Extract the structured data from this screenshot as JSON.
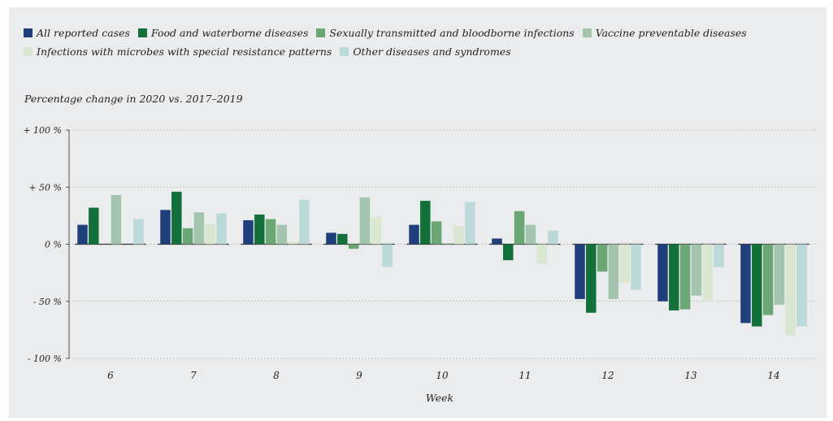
{
  "chart_data": {
    "type": "bar",
    "title": "",
    "ylabel": "Percentage change in 2020 vs. 2017–2019",
    "xlabel": "Week",
    "categories": [
      "6",
      "7",
      "8",
      "9",
      "10",
      "11",
      "12",
      "13",
      "14"
    ],
    "ylim": [
      -100,
      100
    ],
    "yticks": [
      {
        "value": 100,
        "label": "+ 100 %"
      },
      {
        "value": 50,
        "label": "+ 50 %"
      },
      {
        "value": 0,
        "label": "0 %"
      },
      {
        "value": -50,
        "label": "- 50 %"
      },
      {
        "value": -100,
        "label": "- 100 %"
      }
    ],
    "grid": "horizontal dotted",
    "legend_position": "top",
    "series": [
      {
        "name": "All reported cases",
        "color": "#1f3f7a",
        "values": [
          17,
          30,
          21,
          10,
          17,
          5,
          -48,
          -50,
          -69
        ]
      },
      {
        "name": "Food and waterborne diseases",
        "color": "#14703a",
        "values": [
          32,
          46,
          26,
          9,
          38,
          -14,
          -60,
          -58,
          -72
        ]
      },
      {
        "name": "Sexually transmitted and bloodborne infections",
        "color": "#6aa774",
        "values": [
          0,
          14,
          22,
          -4,
          20,
          29,
          -24,
          -57,
          -62
        ]
      },
      {
        "name": "Vaccine preventable diseases",
        "color": "#a3c4ad",
        "values": [
          43,
          28,
          17,
          41,
          1,
          17,
          -48,
          -45,
          -53
        ]
      },
      {
        "name": "Infections with microbes with special resistance patterns",
        "color": "#d9e6d0",
        "values": [
          0,
          18,
          2,
          24,
          16,
          -17,
          -34,
          -49,
          -80
        ]
      },
      {
        "name": "Other diseases and syndromes",
        "color": "#bcd9d9",
        "values": [
          22,
          27,
          39,
          -20,
          37,
          12,
          -40,
          -20,
          -72
        ]
      }
    ]
  }
}
